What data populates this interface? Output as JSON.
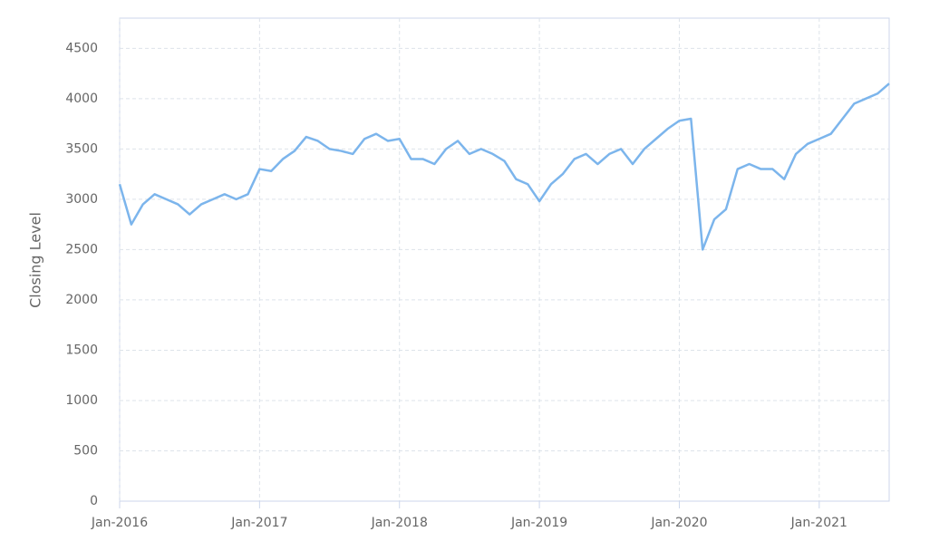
{
  "chart_data": {
    "type": "line",
    "y_label": "Closing Level",
    "x": [
      "2016-01",
      "2016-02",
      "2016-03",
      "2016-04",
      "2016-05",
      "2016-06",
      "2016-07",
      "2016-08",
      "2016-09",
      "2016-10",
      "2016-11",
      "2016-12",
      "2017-01",
      "2017-02",
      "2017-03",
      "2017-04",
      "2017-05",
      "2017-06",
      "2017-07",
      "2017-08",
      "2017-09",
      "2017-10",
      "2017-11",
      "2017-12",
      "2018-01",
      "2018-02",
      "2018-03",
      "2018-04",
      "2018-05",
      "2018-06",
      "2018-07",
      "2018-08",
      "2018-09",
      "2018-10",
      "2018-11",
      "2018-12",
      "2019-01",
      "2019-02",
      "2019-03",
      "2019-04",
      "2019-05",
      "2019-06",
      "2019-07",
      "2019-08",
      "2019-09",
      "2019-10",
      "2019-11",
      "2019-12",
      "2020-01",
      "2020-02",
      "2020-03",
      "2020-04",
      "2020-05",
      "2020-06",
      "2020-07",
      "2020-08",
      "2020-09",
      "2020-10",
      "2020-11",
      "2020-12",
      "2021-01",
      "2021-02",
      "2021-03",
      "2021-04",
      "2021-05",
      "2021-06",
      "2021-07"
    ],
    "values": [
      3150,
      2750,
      2950,
      3050,
      3000,
      2950,
      2850,
      2950,
      3000,
      3050,
      3000,
      3050,
      3300,
      3280,
      3400,
      3480,
      3620,
      3580,
      3500,
      3480,
      3450,
      3600,
      3650,
      3580,
      3600,
      3400,
      3400,
      3350,
      3500,
      3580,
      3450,
      3500,
      3450,
      3380,
      3200,
      3150,
      2980,
      3150,
      3250,
      3400,
      3450,
      3350,
      3450,
      3500,
      3350,
      3500,
      3600,
      3700,
      3780,
      3800,
      2500,
      2800,
      2900,
      3300,
      3350,
      3300,
      3300,
      3200,
      3450,
      3550,
      3600,
      3650,
      3800,
      3950,
      4000,
      4050,
      4150
    ],
    "color": "#7cb5ec",
    "xlim": [
      "2016-01",
      "2021-07"
    ],
    "xticks": [
      {
        "value": "2016-01",
        "label": "Jan-2016"
      },
      {
        "value": "2017-01",
        "label": "Jan-2017"
      },
      {
        "value": "2018-01",
        "label": "Jan-2018"
      },
      {
        "value": "2019-01",
        "label": "Jan-2019"
      },
      {
        "value": "2020-01",
        "label": "Jan-2020"
      },
      {
        "value": "2021-01",
        "label": "Jan-2021"
      }
    ],
    "ylim": [
      0,
      4800
    ],
    "yticks": [
      0,
      500,
      1000,
      1500,
      2000,
      2500,
      3000,
      3500,
      4000,
      4500
    ],
    "grid": true
  }
}
